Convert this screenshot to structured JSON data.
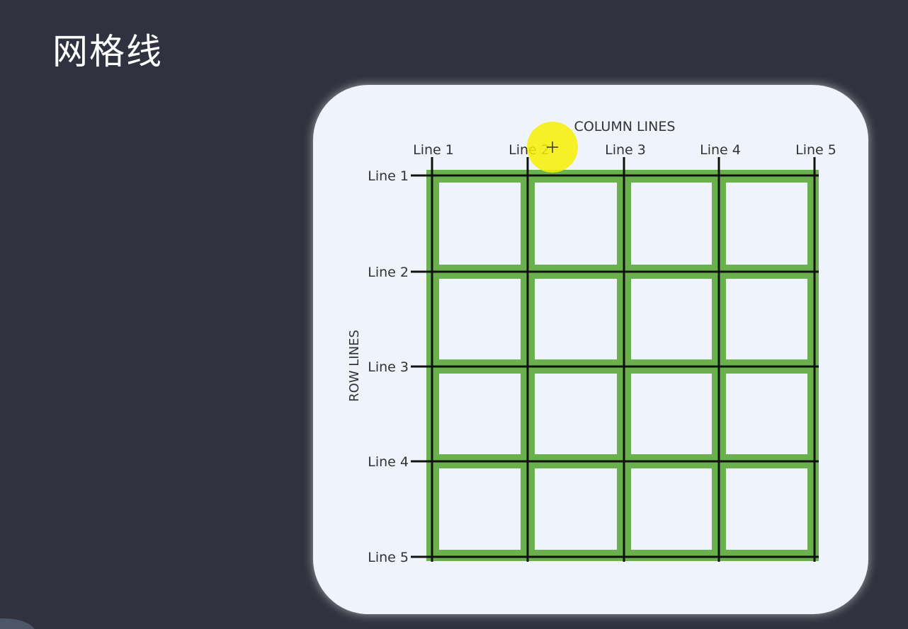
{
  "slide": {
    "title": "网格线"
  },
  "diagram": {
    "column_axis_label": "COLUMN LINES",
    "row_axis_label": "ROW LINES",
    "column_lines": [
      "Line 1",
      "Line 2",
      "Line 3",
      "Line 4",
      "Line 5"
    ],
    "row_lines": [
      "Line 1",
      "Line 2",
      "Line 3",
      "Line 4",
      "Line 5"
    ],
    "columns": 4,
    "rows": 4,
    "colors": {
      "card_background": "#eef3fc",
      "cell_border": "#6ab04c",
      "grid_line": "#111111",
      "label_text": "#333333",
      "cursor_highlight": "#f7f000"
    }
  },
  "cursor": {
    "icon": "cursor-highlight-icon"
  }
}
